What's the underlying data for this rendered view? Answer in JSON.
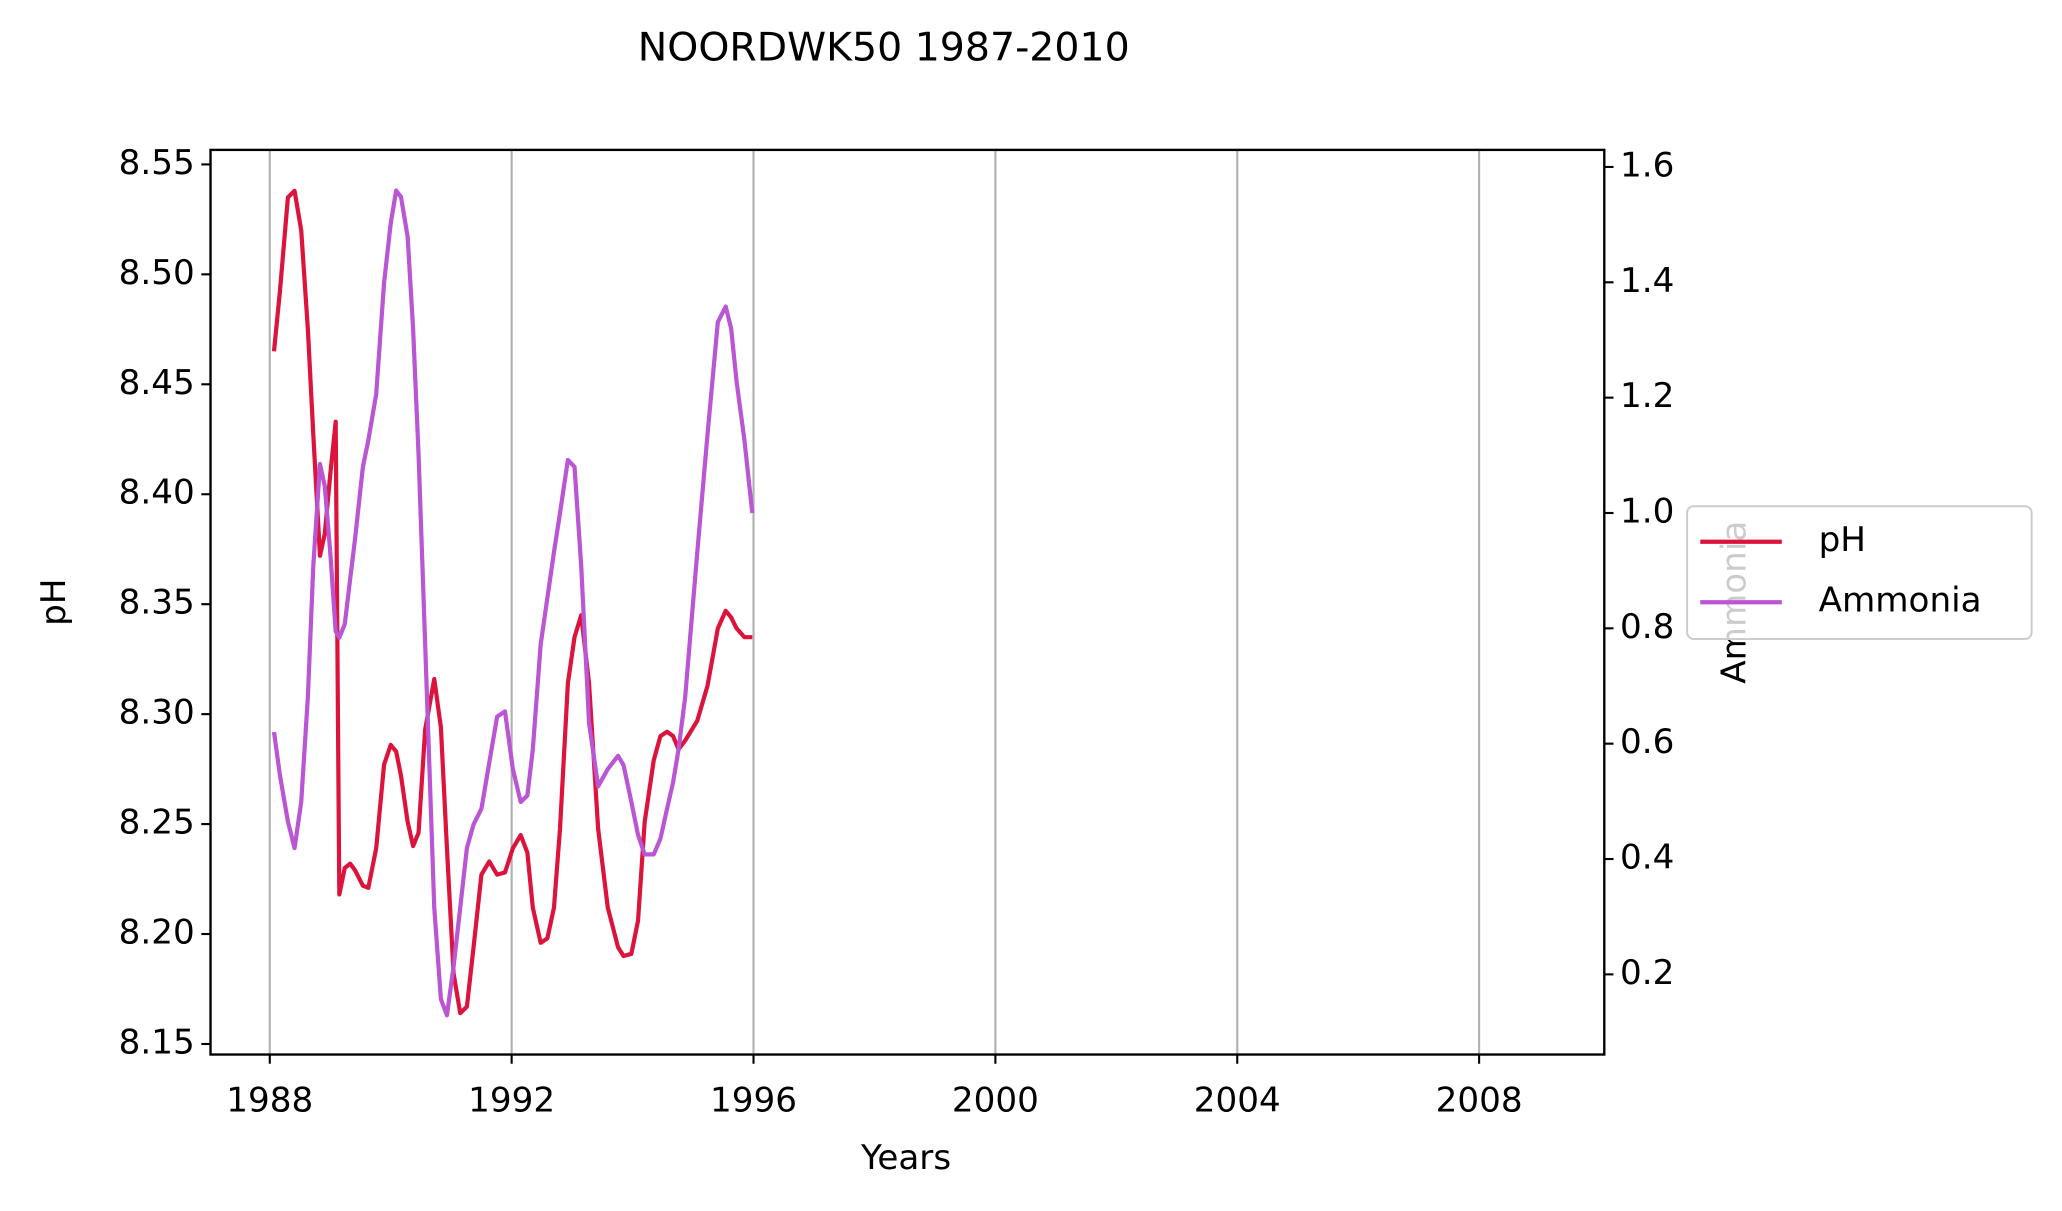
{
  "chart_data": {
    "type": "line",
    "title": "NOORDWK50 1987-2010",
    "x_label": "Years",
    "y_label": "pH",
    "y2_label": "Ammonia",
    "x": [
      1988.07,
      1988.17,
      1988.3,
      1988.41,
      1988.52,
      1988.63,
      1988.72,
      1988.83,
      1988.91,
      1989.0,
      1989.09,
      1989.15,
      1989.24,
      1989.33,
      1989.41,
      1989.54,
      1989.63,
      1989.76,
      1989.89,
      1990.0,
      1990.09,
      1990.17,
      1990.28,
      1990.37,
      1990.46,
      1990.57,
      1990.72,
      1990.83,
      1990.93,
      1991.04,
      1991.15,
      1991.26,
      1991.37,
      1991.5,
      1991.63,
      1991.76,
      1991.89,
      1992.02,
      1992.15,
      1992.26,
      1992.35,
      1992.48,
      1992.59,
      1992.7,
      1992.8,
      1992.93,
      1993.04,
      1993.15,
      1993.28,
      1993.43,
      1993.59,
      1993.76,
      1993.85,
      1993.98,
      1994.09,
      1994.2,
      1994.35,
      1994.46,
      1994.57,
      1994.67,
      1994.76,
      1994.87,
      1995.07,
      1995.24,
      1995.41,
      1995.54,
      1995.63,
      1995.72,
      1995.85,
      1995.98
    ],
    "series": [
      {
        "name": "pH",
        "color": "#dc143c",
        "axis": "y",
        "values": [
          8.465,
          8.493,
          8.535,
          8.538,
          8.52,
          8.475,
          8.427,
          8.372,
          8.382,
          8.409,
          8.433,
          8.218,
          8.23,
          8.232,
          8.229,
          8.222,
          8.221,
          8.239,
          8.277,
          8.286,
          8.283,
          8.272,
          8.251,
          8.24,
          8.246,
          8.293,
          8.316,
          8.294,
          8.239,
          8.182,
          8.164,
          8.167,
          8.194,
          8.227,
          8.233,
          8.227,
          8.228,
          8.239,
          8.245,
          8.237,
          8.212,
          8.196,
          8.198,
          8.212,
          8.248,
          8.314,
          8.335,
          8.345,
          8.314,
          8.248,
          8.212,
          8.194,
          8.19,
          8.191,
          8.206,
          8.251,
          8.279,
          8.29,
          8.292,
          8.29,
          8.284,
          8.288,
          8.297,
          8.313,
          8.339,
          8.347,
          8.344,
          8.339,
          8.335,
          8.335
        ]
      },
      {
        "name": "Ammonia",
        "color": "#ba55d3",
        "axis": "y2",
        "values": [
          0.62,
          0.544,
          0.465,
          0.419,
          0.499,
          0.681,
          0.909,
          1.085,
          1.046,
          0.932,
          0.795,
          0.784,
          0.807,
          0.886,
          0.955,
          1.08,
          1.126,
          1.206,
          1.399,
          1.502,
          1.559,
          1.548,
          1.479,
          1.32,
          1.103,
          0.772,
          0.316,
          0.157,
          0.129,
          0.214,
          0.316,
          0.419,
          0.46,
          0.487,
          0.567,
          0.647,
          0.656,
          0.556,
          0.499,
          0.51,
          0.59,
          0.772,
          0.852,
          0.932,
          1.0,
          1.092,
          1.08,
          0.909,
          0.636,
          0.526,
          0.556,
          0.579,
          0.563,
          0.499,
          0.442,
          0.408,
          0.408,
          0.435,
          0.487,
          0.533,
          0.59,
          0.681,
          0.932,
          1.137,
          1.331,
          1.358,
          1.32,
          1.228,
          1.126,
          1.0
        ]
      }
    ],
    "xlim": [
      1987.02,
      2010.07
    ],
    "xticks": [
      1988,
      1992,
      1996,
      2000,
      2004,
      2008
    ],
    "ylim": [
      8.1452,
      8.5566
    ],
    "yticks": [
      8.15,
      {
        "value": 8.2,
        "label": "8.20"
      },
      8.25,
      {
        "value": 8.3,
        "label": "8.30"
      },
      8.35,
      {
        "value": 8.4,
        "label": "8.40"
      },
      8.45,
      {
        "value": 8.5,
        "label": "8.50"
      },
      8.55
    ],
    "y2lim": [
      0.061,
      1.6296
    ],
    "y2ticks": [
      0.2,
      0.4,
      0.6,
      0.8,
      {
        "value": 1,
        "label": "1.0"
      },
      1.2,
      1.4,
      1.6
    ],
    "grid": "x",
    "legend": "right"
  }
}
